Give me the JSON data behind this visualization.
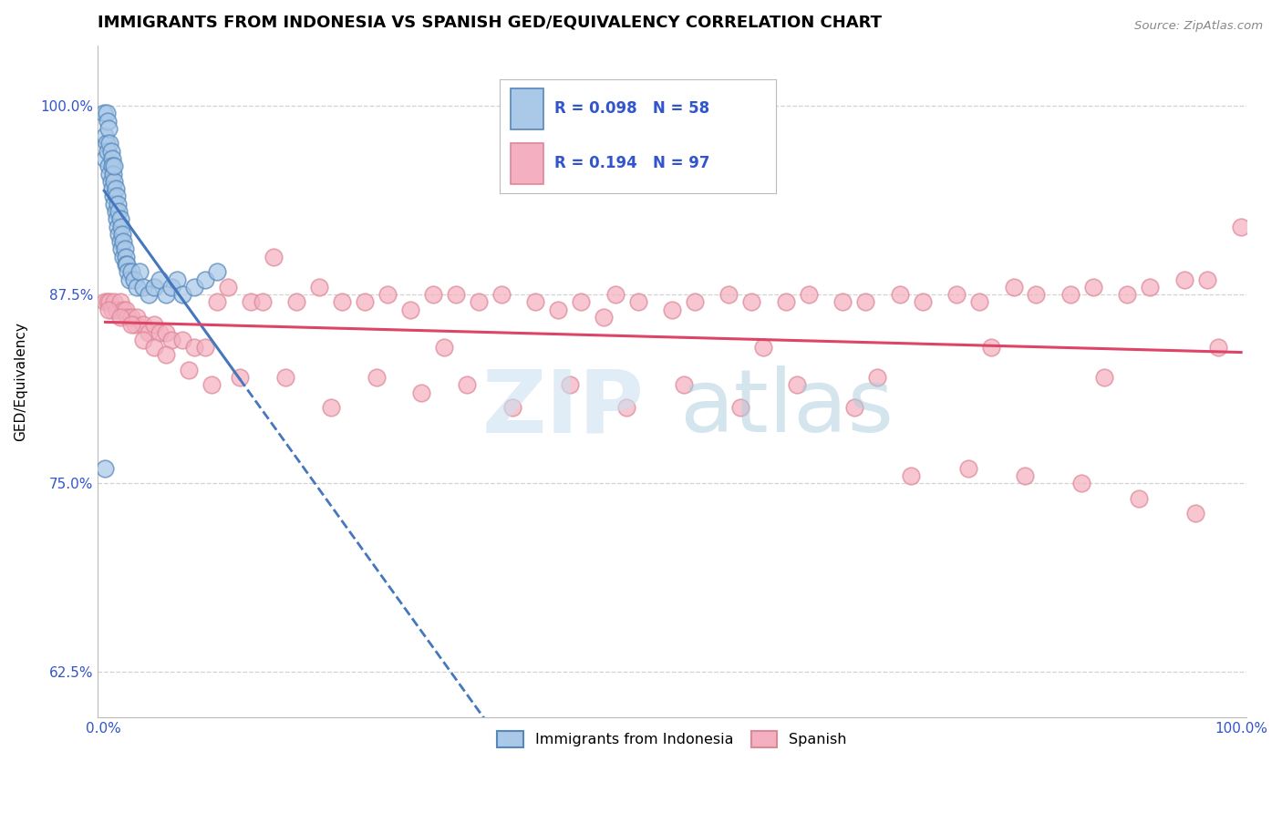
{
  "title": "IMMIGRANTS FROM INDONESIA VS SPANISH GED/EQUIVALENCY CORRELATION CHART",
  "source_text": "Source: ZipAtlas.com",
  "ylabel": "GED/Equivalency",
  "xlim": [
    -0.005,
    1.005
  ],
  "ylim": [
    0.595,
    1.04
  ],
  "y_ticks": [
    0.625,
    0.75,
    0.875,
    1.0
  ],
  "y_tick_labels": [
    "62.5%",
    "75.0%",
    "87.5%",
    "100.0%"
  ],
  "legend_R_blue": "R = 0.098",
  "legend_N_blue": "N = 58",
  "legend_R_pink": "R = 0.194",
  "legend_N_pink": "N = 97",
  "blue_fill": "#aac8e8",
  "blue_edge": "#5588bb",
  "pink_fill": "#f4b0c0",
  "pink_edge": "#dd8898",
  "trend_blue_color": "#4477bb",
  "trend_pink_color": "#dd4466",
  "legend_text_color": "#3355cc",
  "background_color": "#ffffff",
  "grid_color": "#cccccc",
  "title_fontsize": 13,
  "axis_label_fontsize": 11,
  "tick_fontsize": 11,
  "watermark_zip_color": "#cce0f0",
  "watermark_atlas_color": "#aaccdd",
  "blue_x": [
    0.001,
    0.002,
    0.002,
    0.003,
    0.003,
    0.004,
    0.004,
    0.005,
    0.005,
    0.006,
    0.006,
    0.007,
    0.007,
    0.008,
    0.008,
    0.008,
    0.009,
    0.009,
    0.01,
    0.01,
    0.01,
    0.011,
    0.011,
    0.012,
    0.012,
    0.013,
    0.013,
    0.014,
    0.014,
    0.015,
    0.015,
    0.016,
    0.016,
    0.017,
    0.018,
    0.018,
    0.019,
    0.02,
    0.02,
    0.021,
    0.022,
    0.023,
    0.025,
    0.027,
    0.03,
    0.032,
    0.035,
    0.04,
    0.045,
    0.05,
    0.055,
    0.06,
    0.065,
    0.07,
    0.08,
    0.09,
    0.1,
    0.002
  ],
  "blue_y": [
    0.995,
    0.98,
    0.965,
    0.995,
    0.975,
    0.99,
    0.97,
    0.985,
    0.96,
    0.975,
    0.955,
    0.97,
    0.95,
    0.965,
    0.945,
    0.96,
    0.955,
    0.94,
    0.95,
    0.935,
    0.96,
    0.945,
    0.93,
    0.94,
    0.925,
    0.935,
    0.92,
    0.93,
    0.915,
    0.925,
    0.91,
    0.92,
    0.905,
    0.915,
    0.91,
    0.9,
    0.905,
    0.9,
    0.895,
    0.895,
    0.89,
    0.885,
    0.89,
    0.885,
    0.88,
    0.89,
    0.88,
    0.875,
    0.88,
    0.885,
    0.875,
    0.88,
    0.885,
    0.875,
    0.88,
    0.885,
    0.89,
    0.76
  ],
  "pink_x": [
    0.002,
    0.004,
    0.006,
    0.008,
    0.01,
    0.012,
    0.015,
    0.018,
    0.02,
    0.022,
    0.025,
    0.028,
    0.03,
    0.035,
    0.04,
    0.045,
    0.05,
    0.055,
    0.06,
    0.07,
    0.08,
    0.09,
    0.1,
    0.11,
    0.13,
    0.15,
    0.17,
    0.19,
    0.21,
    0.23,
    0.25,
    0.27,
    0.29,
    0.31,
    0.33,
    0.35,
    0.38,
    0.4,
    0.42,
    0.45,
    0.47,
    0.5,
    0.52,
    0.55,
    0.57,
    0.6,
    0.62,
    0.65,
    0.67,
    0.7,
    0.72,
    0.75,
    0.77,
    0.8,
    0.82,
    0.85,
    0.87,
    0.9,
    0.92,
    0.95,
    0.97,
    1.0,
    0.005,
    0.015,
    0.025,
    0.035,
    0.045,
    0.055,
    0.075,
    0.095,
    0.12,
    0.16,
    0.2,
    0.24,
    0.28,
    0.32,
    0.36,
    0.41,
    0.46,
    0.51,
    0.56,
    0.61,
    0.66,
    0.71,
    0.76,
    0.81,
    0.86,
    0.91,
    0.96,
    0.14,
    0.3,
    0.44,
    0.58,
    0.68,
    0.78,
    0.88,
    0.98
  ],
  "pink_y": [
    0.87,
    0.87,
    0.87,
    0.865,
    0.87,
    0.865,
    0.87,
    0.865,
    0.865,
    0.86,
    0.86,
    0.855,
    0.86,
    0.855,
    0.85,
    0.855,
    0.85,
    0.85,
    0.845,
    0.845,
    0.84,
    0.84,
    0.87,
    0.88,
    0.87,
    0.9,
    0.87,
    0.88,
    0.87,
    0.87,
    0.875,
    0.865,
    0.875,
    0.875,
    0.87,
    0.875,
    0.87,
    0.865,
    0.87,
    0.875,
    0.87,
    0.865,
    0.87,
    0.875,
    0.87,
    0.87,
    0.875,
    0.87,
    0.87,
    0.875,
    0.87,
    0.875,
    0.87,
    0.88,
    0.875,
    0.875,
    0.88,
    0.875,
    0.88,
    0.885,
    0.885,
    0.92,
    0.865,
    0.86,
    0.855,
    0.845,
    0.84,
    0.835,
    0.825,
    0.815,
    0.82,
    0.82,
    0.8,
    0.82,
    0.81,
    0.815,
    0.8,
    0.815,
    0.8,
    0.815,
    0.8,
    0.815,
    0.8,
    0.755,
    0.76,
    0.755,
    0.75,
    0.74,
    0.73,
    0.87,
    0.84,
    0.86,
    0.84,
    0.82,
    0.84,
    0.82,
    0.84
  ]
}
